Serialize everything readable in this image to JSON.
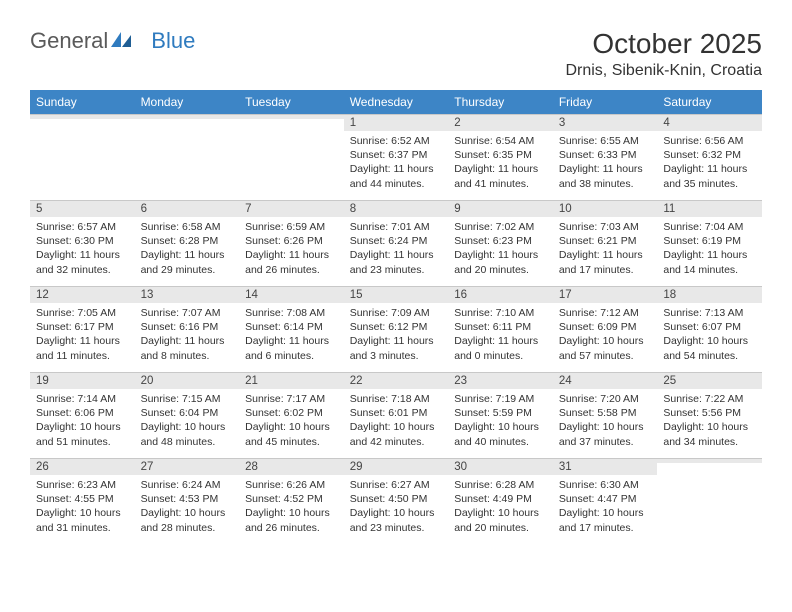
{
  "logo": {
    "word1": "General",
    "word2": "Blue"
  },
  "title": "October 2025",
  "location": "Drnis, Sibenik-Knin, Croatia",
  "colors": {
    "header_bg": "#3d85c6",
    "header_text": "#ffffff",
    "daynum_bg": "#e8e8e8",
    "daynum_border": "#c8c8c8",
    "body_text": "#333333",
    "logo_gray": "#5a5a5a",
    "logo_blue": "#2f7bbf",
    "page_bg": "#ffffff"
  },
  "dayHeaders": [
    "Sunday",
    "Monday",
    "Tuesday",
    "Wednesday",
    "Thursday",
    "Friday",
    "Saturday"
  ],
  "weeks": [
    [
      {
        "n": "",
        "sr": "",
        "ss": "",
        "dl": ""
      },
      {
        "n": "",
        "sr": "",
        "ss": "",
        "dl": ""
      },
      {
        "n": "",
        "sr": "",
        "ss": "",
        "dl": ""
      },
      {
        "n": "1",
        "sr": "Sunrise: 6:52 AM",
        "ss": "Sunset: 6:37 PM",
        "dl": "Daylight: 11 hours and 44 minutes."
      },
      {
        "n": "2",
        "sr": "Sunrise: 6:54 AM",
        "ss": "Sunset: 6:35 PM",
        "dl": "Daylight: 11 hours and 41 minutes."
      },
      {
        "n": "3",
        "sr": "Sunrise: 6:55 AM",
        "ss": "Sunset: 6:33 PM",
        "dl": "Daylight: 11 hours and 38 minutes."
      },
      {
        "n": "4",
        "sr": "Sunrise: 6:56 AM",
        "ss": "Sunset: 6:32 PM",
        "dl": "Daylight: 11 hours and 35 minutes."
      }
    ],
    [
      {
        "n": "5",
        "sr": "Sunrise: 6:57 AM",
        "ss": "Sunset: 6:30 PM",
        "dl": "Daylight: 11 hours and 32 minutes."
      },
      {
        "n": "6",
        "sr": "Sunrise: 6:58 AM",
        "ss": "Sunset: 6:28 PM",
        "dl": "Daylight: 11 hours and 29 minutes."
      },
      {
        "n": "7",
        "sr": "Sunrise: 6:59 AM",
        "ss": "Sunset: 6:26 PM",
        "dl": "Daylight: 11 hours and 26 minutes."
      },
      {
        "n": "8",
        "sr": "Sunrise: 7:01 AM",
        "ss": "Sunset: 6:24 PM",
        "dl": "Daylight: 11 hours and 23 minutes."
      },
      {
        "n": "9",
        "sr": "Sunrise: 7:02 AM",
        "ss": "Sunset: 6:23 PM",
        "dl": "Daylight: 11 hours and 20 minutes."
      },
      {
        "n": "10",
        "sr": "Sunrise: 7:03 AM",
        "ss": "Sunset: 6:21 PM",
        "dl": "Daylight: 11 hours and 17 minutes."
      },
      {
        "n": "11",
        "sr": "Sunrise: 7:04 AM",
        "ss": "Sunset: 6:19 PM",
        "dl": "Daylight: 11 hours and 14 minutes."
      }
    ],
    [
      {
        "n": "12",
        "sr": "Sunrise: 7:05 AM",
        "ss": "Sunset: 6:17 PM",
        "dl": "Daylight: 11 hours and 11 minutes."
      },
      {
        "n": "13",
        "sr": "Sunrise: 7:07 AM",
        "ss": "Sunset: 6:16 PM",
        "dl": "Daylight: 11 hours and 8 minutes."
      },
      {
        "n": "14",
        "sr": "Sunrise: 7:08 AM",
        "ss": "Sunset: 6:14 PM",
        "dl": "Daylight: 11 hours and 6 minutes."
      },
      {
        "n": "15",
        "sr": "Sunrise: 7:09 AM",
        "ss": "Sunset: 6:12 PM",
        "dl": "Daylight: 11 hours and 3 minutes."
      },
      {
        "n": "16",
        "sr": "Sunrise: 7:10 AM",
        "ss": "Sunset: 6:11 PM",
        "dl": "Daylight: 11 hours and 0 minutes."
      },
      {
        "n": "17",
        "sr": "Sunrise: 7:12 AM",
        "ss": "Sunset: 6:09 PM",
        "dl": "Daylight: 10 hours and 57 minutes."
      },
      {
        "n": "18",
        "sr": "Sunrise: 7:13 AM",
        "ss": "Sunset: 6:07 PM",
        "dl": "Daylight: 10 hours and 54 minutes."
      }
    ],
    [
      {
        "n": "19",
        "sr": "Sunrise: 7:14 AM",
        "ss": "Sunset: 6:06 PM",
        "dl": "Daylight: 10 hours and 51 minutes."
      },
      {
        "n": "20",
        "sr": "Sunrise: 7:15 AM",
        "ss": "Sunset: 6:04 PM",
        "dl": "Daylight: 10 hours and 48 minutes."
      },
      {
        "n": "21",
        "sr": "Sunrise: 7:17 AM",
        "ss": "Sunset: 6:02 PM",
        "dl": "Daylight: 10 hours and 45 minutes."
      },
      {
        "n": "22",
        "sr": "Sunrise: 7:18 AM",
        "ss": "Sunset: 6:01 PM",
        "dl": "Daylight: 10 hours and 42 minutes."
      },
      {
        "n": "23",
        "sr": "Sunrise: 7:19 AM",
        "ss": "Sunset: 5:59 PM",
        "dl": "Daylight: 10 hours and 40 minutes."
      },
      {
        "n": "24",
        "sr": "Sunrise: 7:20 AM",
        "ss": "Sunset: 5:58 PM",
        "dl": "Daylight: 10 hours and 37 minutes."
      },
      {
        "n": "25",
        "sr": "Sunrise: 7:22 AM",
        "ss": "Sunset: 5:56 PM",
        "dl": "Daylight: 10 hours and 34 minutes."
      }
    ],
    [
      {
        "n": "26",
        "sr": "Sunrise: 6:23 AM",
        "ss": "Sunset: 4:55 PM",
        "dl": "Daylight: 10 hours and 31 minutes."
      },
      {
        "n": "27",
        "sr": "Sunrise: 6:24 AM",
        "ss": "Sunset: 4:53 PM",
        "dl": "Daylight: 10 hours and 28 minutes."
      },
      {
        "n": "28",
        "sr": "Sunrise: 6:26 AM",
        "ss": "Sunset: 4:52 PM",
        "dl": "Daylight: 10 hours and 26 minutes."
      },
      {
        "n": "29",
        "sr": "Sunrise: 6:27 AM",
        "ss": "Sunset: 4:50 PM",
        "dl": "Daylight: 10 hours and 23 minutes."
      },
      {
        "n": "30",
        "sr": "Sunrise: 6:28 AM",
        "ss": "Sunset: 4:49 PM",
        "dl": "Daylight: 10 hours and 20 minutes."
      },
      {
        "n": "31",
        "sr": "Sunrise: 6:30 AM",
        "ss": "Sunset: 4:47 PM",
        "dl": "Daylight: 10 hours and 17 minutes."
      },
      {
        "n": "",
        "sr": "",
        "ss": "",
        "dl": ""
      }
    ]
  ]
}
